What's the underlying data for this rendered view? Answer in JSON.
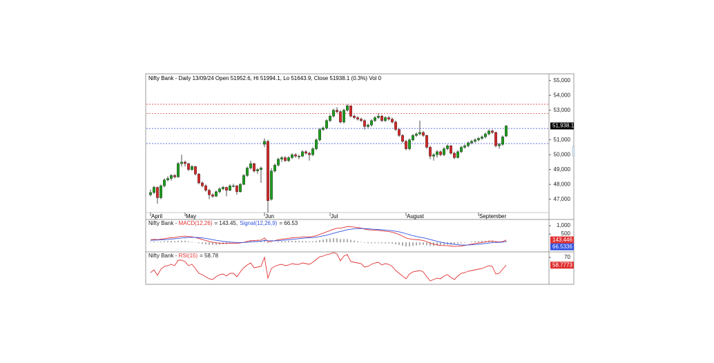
{
  "chart_data": [
    {
      "type": "candlestick",
      "title": "Nifty Bank - Daily 13/09/24 Open 51952.6, Hi 51994.1, Lo 51643.9, Close 51938.1 (0.3%) Vol 0",
      "categories": [
        "April",
        null,
        null,
        null,
        null,
        null,
        null,
        null,
        null,
        null,
        "May",
        null,
        null,
        null,
        null,
        null,
        null,
        null,
        null,
        null,
        null,
        null,
        null,
        null,
        null,
        null,
        null,
        null,
        null,
        null,
        null,
        null,
        null,
        "Jun",
        null,
        null,
        null,
        null,
        null,
        null,
        null,
        null,
        null,
        null,
        null,
        null,
        null,
        null,
        null,
        null,
        null,
        null,
        "Jul",
        null,
        null,
        null,
        null,
        null,
        null,
        null,
        null,
        null,
        null,
        null,
        null,
        null,
        null,
        null,
        null,
        null,
        null,
        null,
        null,
        null,
        "August",
        null,
        null,
        null,
        null,
        null,
        null,
        null,
        null,
        null,
        null,
        null,
        null,
        null,
        null,
        null,
        null,
        null,
        null,
        null,
        null,
        "September",
        null,
        null,
        null,
        null,
        null,
        null,
        null,
        null
      ],
      "candles": [
        [
          47300,
          47650,
          47200,
          47450
        ],
        [
          47450,
          47900,
          47350,
          47800
        ],
        [
          47800,
          47850,
          46700,
          47100
        ],
        [
          47100,
          48000,
          47000,
          47900
        ],
        [
          47900,
          48400,
          47800,
          48300
        ],
        [
          48300,
          48550,
          48200,
          48400
        ],
        [
          48400,
          48700,
          48250,
          48600
        ],
        [
          48600,
          48700,
          48400,
          48500
        ],
        [
          48500,
          49500,
          48450,
          49400
        ],
        [
          49400,
          50000,
          49200,
          49500
        ],
        [
          49500,
          49600,
          49200,
          49400
        ],
        [
          49400,
          49450,
          48900,
          49000
        ],
        [
          49000,
          49300,
          48900,
          49200
        ],
        [
          49200,
          49250,
          48600,
          48700
        ],
        [
          48700,
          48750,
          48000,
          48100
        ],
        [
          48100,
          48200,
          47800,
          47900
        ],
        [
          47900,
          48000,
          47500,
          47600
        ],
        [
          47600,
          47700,
          47000,
          47300
        ],
        [
          47300,
          47400,
          47100,
          47200
        ],
        [
          47200,
          47600,
          47150,
          47500
        ],
        [
          47500,
          47800,
          47400,
          47700
        ],
        [
          47700,
          47900,
          47600,
          47800
        ],
        [
          47800,
          47850,
          47200,
          47600
        ],
        [
          47600,
          48000,
          47550,
          47900
        ],
        [
          47900,
          48050,
          47800,
          47900
        ],
        [
          47900,
          47950,
          47300,
          47500
        ],
        [
          47500,
          48100,
          47450,
          48000
        ],
        [
          48000,
          48700,
          47950,
          48600
        ],
        [
          48600,
          49200,
          48500,
          49100
        ],
        [
          49100,
          49600,
          49000,
          49400
        ],
        [
          49400,
          49450,
          48800,
          48900
        ],
        [
          48900,
          49100,
          48700,
          49000
        ],
        [
          49000,
          49200,
          48100,
          49100
        ],
        [
          50700,
          51100,
          50500,
          50900
        ],
        [
          50900,
          51000,
          46100,
          46900
        ],
        [
          47000,
          49100,
          46900,
          48900
        ],
        [
          48900,
          49400,
          48800,
          49300
        ],
        [
          49300,
          49800,
          49200,
          49700
        ],
        [
          49700,
          49900,
          49500,
          49800
        ],
        [
          49800,
          49900,
          49500,
          49600
        ],
        [
          49600,
          49900,
          49500,
          49800
        ],
        [
          49800,
          50100,
          49700,
          50000
        ],
        [
          50000,
          50100,
          49800,
          49900
        ],
        [
          49900,
          50000,
          49700,
          49900
        ],
        [
          49900,
          50300,
          49850,
          50200
        ],
        [
          50200,
          50300,
          50000,
          50100
        ],
        [
          50100,
          50200,
          49600,
          50000
        ],
        [
          50000,
          50500,
          49900,
          50400
        ],
        [
          50400,
          51100,
          50300,
          51000
        ],
        [
          51000,
          51800,
          50900,
          51700
        ],
        [
          51700,
          51900,
          51600,
          51800
        ],
        [
          51800,
          52400,
          51700,
          52300
        ],
        [
          52300,
          52700,
          52200,
          52600
        ],
        [
          52600,
          53100,
          52500,
          53000
        ],
        [
          53000,
          53200,
          52800,
          52900
        ],
        [
          52900,
          53000,
          52100,
          52200
        ],
        [
          52200,
          53100,
          52100,
          53000
        ],
        [
          53000,
          53400,
          52900,
          53300
        ],
        [
          53300,
          53300,
          52500,
          52600
        ],
        [
          52600,
          52700,
          52400,
          52500
        ],
        [
          52500,
          52600,
          52300,
          52400
        ],
        [
          52400,
          52500,
          52200,
          52300
        ],
        [
          52300,
          52400,
          51700,
          51900
        ],
        [
          51900,
          52100,
          51800,
          52000
        ],
        [
          52000,
          52400,
          51900,
          52300
        ],
        [
          52300,
          52600,
          52200,
          52500
        ],
        [
          52500,
          52800,
          52400,
          52600
        ],
        [
          52600,
          52700,
          52200,
          52300
        ],
        [
          52300,
          52600,
          52200,
          52500
        ],
        [
          52500,
          52600,
          52300,
          52400
        ],
        [
          52400,
          52500,
          52100,
          52200
        ],
        [
          52200,
          52300,
          51600,
          51700
        ],
        [
          51700,
          51800,
          51200,
          51300
        ],
        [
          51300,
          51400,
          50800,
          50900
        ],
        [
          50900,
          51000,
          50300,
          50400
        ],
        [
          50400,
          51100,
          50300,
          51000
        ],
        [
          51000,
          51400,
          50900,
          51300
        ],
        [
          51300,
          51500,
          51200,
          51400
        ],
        [
          51400,
          52300,
          51300,
          51500
        ],
        [
          51500,
          51600,
          51200,
          51300
        ],
        [
          51300,
          51350,
          50400,
          50500
        ],
        [
          50500,
          50600,
          49700,
          49900
        ],
        [
          49900,
          50100,
          49600,
          50000
        ],
        [
          50000,
          50300,
          49800,
          50200
        ],
        [
          50200,
          50300,
          49900,
          50000
        ],
        [
          50000,
          50500,
          49900,
          50400
        ],
        [
          50400,
          50700,
          50300,
          50600
        ],
        [
          50600,
          50650,
          50000,
          50100
        ],
        [
          50100,
          50200,
          49700,
          49800
        ],
        [
          49800,
          50300,
          49750,
          50200
        ],
        [
          50200,
          50600,
          50100,
          50500
        ],
        [
          50500,
          50700,
          50400,
          50600
        ],
        [
          50600,
          50900,
          50500,
          50800
        ],
        [
          50800,
          51000,
          50700,
          50900
        ],
        [
          50900,
          51100,
          50800,
          51000
        ],
        [
          51000,
          51200,
          50900,
          51100
        ],
        [
          51100,
          51300,
          51000,
          51200
        ],
        [
          51200,
          51500,
          51100,
          51400
        ],
        [
          51400,
          51700,
          51300,
          51600
        ],
        [
          51600,
          51700,
          51400,
          51500
        ],
        [
          51500,
          51550,
          50500,
          50600
        ],
        [
          50600,
          50800,
          50400,
          50700
        ],
        [
          50700,
          51300,
          50600,
          51200
        ],
        [
          51250,
          51994.1,
          51200,
          51938.1
        ]
      ],
      "up_color": "#1e9e1e",
      "down_color": "#d42a2a",
      "ylim": [
        46100,
        55450
      ],
      "yticks": [
        {
          "value": 47000,
          "label": "47,000"
        },
        {
          "value": 48000,
          "label": "48,000"
        },
        {
          "value": 49000,
          "label": "49,000"
        },
        {
          "value": 50000,
          "label": "50,000"
        },
        {
          "value": 51000,
          "label": "51,000"
        },
        {
          "value": 53000,
          "label": "53,000"
        },
        {
          "value": 54000,
          "label": "54,000"
        },
        {
          "value": 55000,
          "label": "55,000"
        }
      ],
      "last_label": "51,938.1",
      "last_label_color": "#000000",
      "hlines": [
        {
          "value": 53400,
          "color": "#e04040"
        },
        {
          "value": 52780,
          "color": "#e04040"
        },
        {
          "value": 51770,
          "color": "#3040e0"
        },
        {
          "value": 50750,
          "color": "#3040e0"
        }
      ]
    },
    {
      "type": "line",
      "prefix": "Nifty Bank - ",
      "series": [
        {
          "name": "MACD(12,26)",
          "color": "#e03030",
          "readout": "= 143.45,",
          "last_label": "143.446",
          "values": [
            150,
            180,
            160,
            190,
            220,
            250,
            280,
            290,
            330,
            360,
            370,
            350,
            330,
            290,
            230,
            170,
            110,
            50,
            0,
            -30,
            -50,
            -60,
            -70,
            -60,
            -50,
            -60,
            -40,
            0,
            50,
            100,
            110,
            120,
            130,
            260,
            40,
            60,
            100,
            150,
            190,
            210,
            240,
            270,
            290,
            300,
            320,
            330,
            330,
            350,
            400,
            480,
            550,
            630,
            710,
            790,
            850,
            850,
            900,
            950,
            940,
            920,
            890,
            860,
            800,
            760,
            740,
            730,
            720,
            690,
            670,
            650,
            610,
            550,
            470,
            370,
            260,
            210,
            180,
            160,
            140,
            110,
            40,
            -50,
            -110,
            -150,
            -190,
            -200,
            -200,
            -220,
            -250,
            -240,
            -220,
            -190,
            -150,
            -110,
            -70,
            -40,
            -10,
            20,
            60,
            80,
            40,
            20,
            40,
            143.446
          ]
        },
        {
          "name": "Signal(12,26,9)",
          "color": "#3050e0",
          "readout": "= 66.53",
          "last_label": "66.5336",
          "values": [
            120,
            130,
            135,
            145,
            160,
            175,
            195,
            215,
            235,
            260,
            280,
            295,
            300,
            300,
            285,
            265,
            235,
            200,
            160,
            120,
            90,
            60,
            35,
            15,
            0,
            -10,
            -15,
            -10,
            0,
            20,
            40,
            55,
            70,
            110,
            95,
            90,
            90,
            100,
            120,
            135,
            155,
            180,
            200,
            220,
            240,
            260,
            275,
            290,
            310,
            345,
            385,
            430,
            485,
            545,
            605,
            655,
            705,
            755,
            790,
            815,
            830,
            835,
            830,
            815,
            800,
            785,
            770,
            755,
            740,
            720,
            700,
            670,
            630,
            580,
            520,
            460,
            400,
            350,
            310,
            270,
            225,
            170,
            115,
            60,
            10,
            -30,
            -65,
            -95,
            -125,
            -145,
            -160,
            -165,
            -160,
            -150,
            -135,
            -115,
            -95,
            -70,
            -45,
            -20,
            -10,
            0,
            10,
            66.5336
          ]
        }
      ],
      "histogram": {
        "color": "#333333",
        "values": [
          30,
          50,
          25,
          45,
          60,
          75,
          85,
          75,
          95,
          100,
          90,
          55,
          30,
          -10,
          -55,
          -95,
          -125,
          -150,
          -160,
          -150,
          -140,
          -120,
          -105,
          -75,
          -50,
          -50,
          -25,
          10,
          50,
          80,
          70,
          65,
          60,
          150,
          -55,
          -30,
          10,
          50,
          70,
          75,
          85,
          90,
          90,
          80,
          80,
          70,
          55,
          60,
          90,
          135,
          165,
          200,
          225,
          245,
          245,
          195,
          195,
          195,
          150,
          105,
          60,
          25,
          -30,
          -55,
          -60,
          -55,
          -50,
          -65,
          -70,
          -70,
          -90,
          -120,
          -160,
          -210,
          -260,
          -250,
          -220,
          -190,
          -170,
          -160,
          -185,
          -220,
          -225,
          -210,
          -200,
          -170,
          -135,
          -125,
          -125,
          -95,
          -60,
          -25,
          10,
          40,
          65,
          75,
          85,
          90,
          105,
          100,
          50,
          20,
          30,
          76.91
        ]
      },
      "ylim": [
        -580,
        1380
      ],
      "yticks": [
        500,
        {
          "value": 1000,
          "label": "1,000"
        }
      ]
    },
    {
      "type": "line",
      "prefix": "Nifty Bank - ",
      "series": [
        {
          "name": "RSI(15)",
          "color": "#e03030",
          "readout": "= 58.78",
          "last_label": "58.7773",
          "values": [
            48,
            52,
            44,
            53,
            57,
            58,
            60,
            58,
            66,
            66,
            64,
            58,
            60,
            54,
            47,
            45,
            42,
            39,
            38,
            42,
            45,
            46,
            43,
            47,
            47,
            42,
            49,
            55,
            59,
            62,
            55,
            56,
            57,
            70,
            40,
            54,
            57,
            59,
            60,
            58,
            59,
            61,
            60,
            60,
            62,
            61,
            60,
            63,
            67,
            71,
            72,
            74,
            75,
            77,
            75,
            65,
            72,
            74,
            64,
            63,
            62,
            61,
            56,
            57,
            60,
            62,
            63,
            59,
            61,
            60,
            57,
            51,
            47,
            43,
            39,
            46,
            49,
            50,
            51,
            49,
            42,
            36,
            38,
            40,
            39,
            43,
            45,
            41,
            38,
            43,
            47,
            48,
            50,
            51,
            52,
            53,
            54,
            56,
            58,
            57,
            46,
            47,
            53,
            58.7773
          ]
        }
      ],
      "ylim": [
        31,
        78
      ],
      "yticks": [
        70
      ]
    }
  ]
}
